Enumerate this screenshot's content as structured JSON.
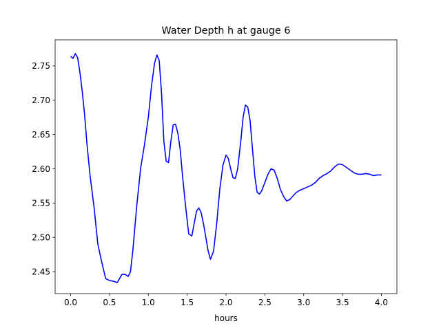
{
  "chart_data": {
    "type": "line",
    "title": "Water Depth h at gauge 6",
    "xlabel": "hours",
    "ylabel": "",
    "xlim": [
      -0.2,
      4.2
    ],
    "ylim": [
      2.418,
      2.788
    ],
    "xticks": [
      0.0,
      0.5,
      1.0,
      1.5,
      2.0,
      2.5,
      3.0,
      3.5,
      4.0
    ],
    "xtick_labels": [
      "0.0",
      "0.5",
      "1.0",
      "1.5",
      "2.0",
      "2.5",
      "3.0",
      "3.5",
      "4.0"
    ],
    "yticks": [
      2.45,
      2.5,
      2.55,
      2.6,
      2.65,
      2.7,
      2.75
    ],
    "ytick_labels": [
      "2.45",
      "2.50",
      "2.55",
      "2.60",
      "2.65",
      "2.70",
      "2.75"
    ],
    "grid": false,
    "legend": "none",
    "line_color": "#0000ff",
    "series": [
      {
        "x": [
          0.0,
          0.03,
          0.06,
          0.09,
          0.12,
          0.15,
          0.18,
          0.21,
          0.25,
          0.3,
          0.35,
          0.4,
          0.45,
          0.5,
          0.55,
          0.6,
          0.63,
          0.66,
          0.7,
          0.74,
          0.77,
          0.8,
          0.85,
          0.9,
          0.95,
          1.0,
          1.04,
          1.08,
          1.11,
          1.14,
          1.17,
          1.2,
          1.23,
          1.26,
          1.29,
          1.32,
          1.35,
          1.38,
          1.41,
          1.44,
          1.48,
          1.52,
          1.56,
          1.59,
          1.62,
          1.65,
          1.68,
          1.71,
          1.74,
          1.77,
          1.8,
          1.84,
          1.88,
          1.92,
          1.96,
          2.0,
          2.03,
          2.06,
          2.09,
          2.12,
          2.15,
          2.19,
          2.22,
          2.25,
          2.28,
          2.31,
          2.34,
          2.37,
          2.4,
          2.43,
          2.46,
          2.5,
          2.54,
          2.58,
          2.62,
          2.66,
          2.7,
          2.74,
          2.78,
          2.82,
          2.86,
          2.9,
          2.94,
          2.98,
          3.02,
          3.06,
          3.1,
          3.15,
          3.2,
          3.25,
          3.3,
          3.35,
          3.4,
          3.45,
          3.5,
          3.55,
          3.6,
          3.65,
          3.7,
          3.75,
          3.8,
          3.85,
          3.9,
          3.95,
          4.0
        ],
        "y": [
          2.764,
          2.761,
          2.768,
          2.762,
          2.74,
          2.712,
          2.678,
          2.636,
          2.59,
          2.545,
          2.49,
          2.464,
          2.44,
          2.437,
          2.436,
          2.434,
          2.44,
          2.446,
          2.446,
          2.443,
          2.45,
          2.48,
          2.545,
          2.6,
          2.635,
          2.675,
          2.72,
          2.754,
          2.766,
          2.758,
          2.71,
          2.64,
          2.611,
          2.609,
          2.64,
          2.664,
          2.665,
          2.652,
          2.628,
          2.59,
          2.545,
          2.505,
          2.502,
          2.52,
          2.538,
          2.543,
          2.536,
          2.52,
          2.5,
          2.48,
          2.468,
          2.48,
          2.52,
          2.57,
          2.605,
          2.62,
          2.615,
          2.6,
          2.587,
          2.586,
          2.6,
          2.64,
          2.675,
          2.693,
          2.69,
          2.67,
          2.63,
          2.59,
          2.566,
          2.563,
          2.568,
          2.58,
          2.592,
          2.6,
          2.598,
          2.586,
          2.57,
          2.56,
          2.553,
          2.555,
          2.56,
          2.565,
          2.568,
          2.57,
          2.572,
          2.574,
          2.576,
          2.58,
          2.586,
          2.59,
          2.593,
          2.597,
          2.603,
          2.607,
          2.606,
          2.602,
          2.598,
          2.594,
          2.592,
          2.592,
          2.593,
          2.592,
          2.59,
          2.591,
          2.591
        ]
      }
    ]
  }
}
